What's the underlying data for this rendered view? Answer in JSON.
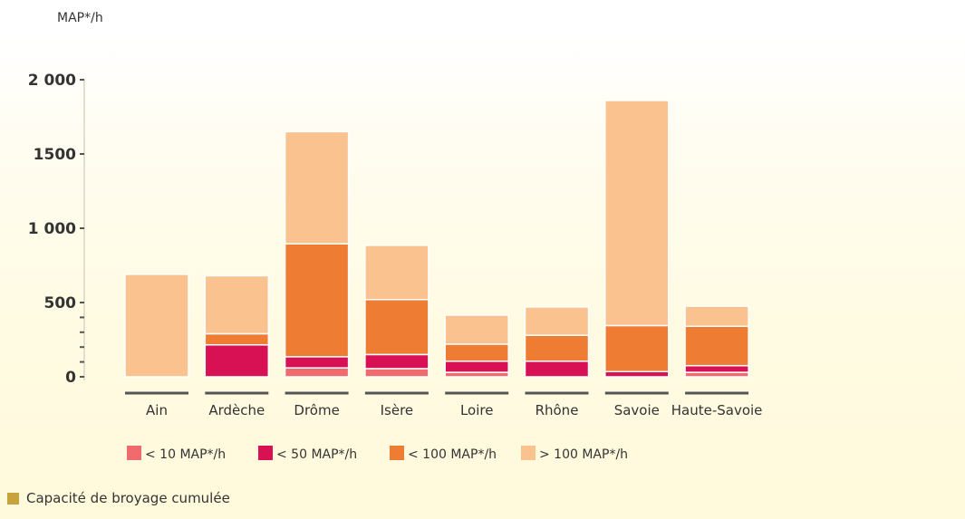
{
  "unit_label": "MAP*/h",
  "caption": "Capacité de broyage cumulée",
  "colors": {
    "lt10": "#ef6b6d",
    "lt50": "#d81054",
    "lt100": "#ee7d33",
    "gt100": "#f9c28e",
    "axis": "#555555",
    "caption_square": "#c8a23a"
  },
  "chart_data": {
    "type": "bar",
    "stacked": true,
    "ylim": [
      0,
      2000
    ],
    "yticks": [
      {
        "value": 0,
        "label": "0"
      },
      {
        "value": 500,
        "label": "500"
      },
      {
        "value": 1000,
        "label": "1 000"
      },
      {
        "value": 1500,
        "label": "1500"
      },
      {
        "value": 2000,
        "label": "2 000"
      }
    ],
    "minor_yticks": [
      100,
      200,
      300,
      400
    ],
    "ylabel": "MAP*/h",
    "categories": [
      "Ain",
      "Ardèche",
      "Drôme",
      "Isère",
      "Loire",
      "Rhône",
      "Savoie",
      "Haute-Savoie"
    ],
    "series": [
      {
        "name": "< 10 MAP*/h",
        "color": "#ef6b6d",
        "values": [
          0,
          0,
          60,
          55,
          30,
          0,
          0,
          30
        ]
      },
      {
        "name": "< 50 MAP*/h",
        "color": "#d81054",
        "values": [
          0,
          215,
          75,
          95,
          75,
          105,
          35,
          45
        ]
      },
      {
        "name": "< 100 MAP*/h",
        "color": "#ee7d33",
        "values": [
          0,
          75,
          760,
          370,
          115,
          175,
          310,
          265
        ]
      },
      {
        "name": "> 100 MAP*/h",
        "color": "#f9c28e",
        "values": [
          690,
          390,
          755,
          365,
          195,
          190,
          1515,
          135
        ]
      }
    ],
    "legend_position": "bottom",
    "grid": false
  }
}
